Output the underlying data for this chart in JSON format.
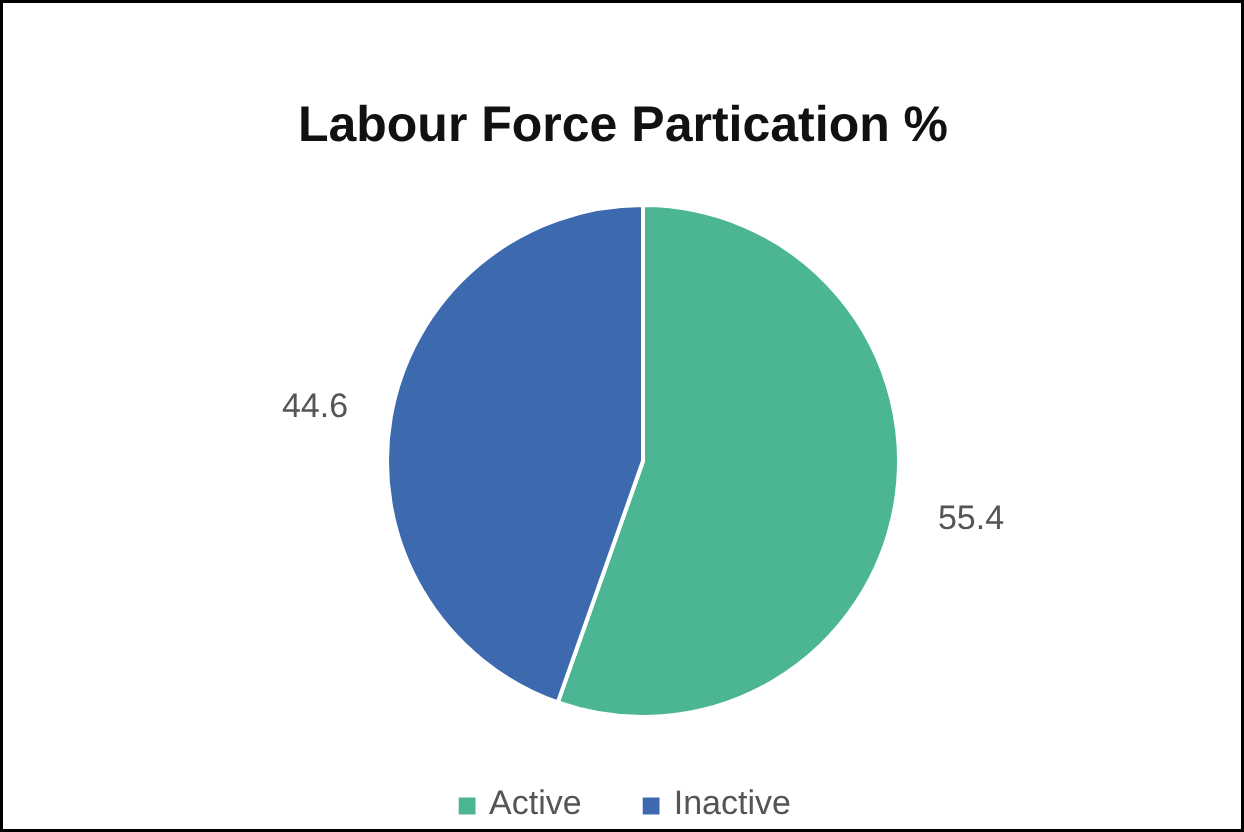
{
  "chart_data": {
    "type": "pie",
    "title": "Labour Force Partication %",
    "categories": [
      "Active",
      "Inactive"
    ],
    "values": [
      55.4,
      44.6
    ],
    "colors": [
      "#4bb594",
      "#3d6aaf"
    ],
    "data_labels": true,
    "legend": "bottom"
  }
}
